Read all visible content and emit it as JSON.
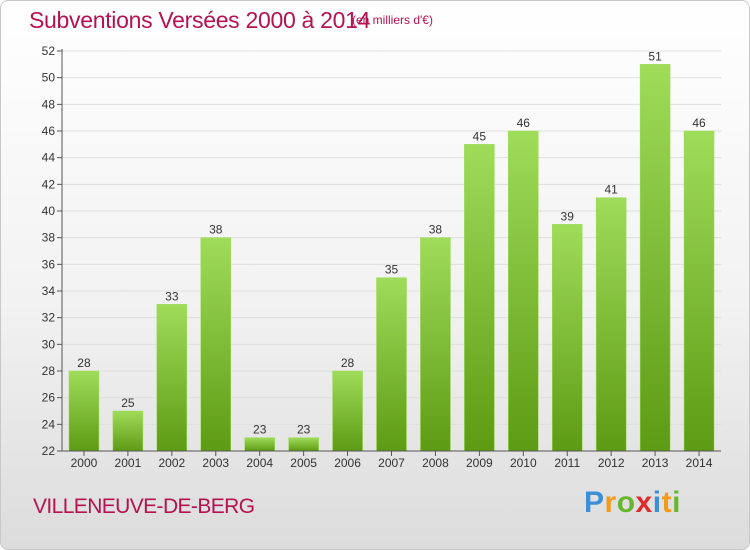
{
  "header": {
    "title": "Subventions Versées 2000 à 2014",
    "unit": "(en milliers d'€)"
  },
  "footer": {
    "commune": "VILLENEUVE-DE-BERG",
    "logo_letters": [
      "P",
      "r",
      "o",
      "x",
      "i",
      "t",
      "i"
    ],
    "logo_colors": [
      "#3b8fd9",
      "#f29a1c",
      "#68b52e",
      "#e02b2b",
      "#3b8fd9",
      "#f29a1c",
      "#68b52e"
    ]
  },
  "colors": {
    "bar_light": "#9fdc5a",
    "bar_dark": "#5e9b14",
    "grid": "#dedede",
    "axis": "#555555",
    "text": "#333333",
    "accent": "#b5124f"
  },
  "chart_data": {
    "type": "bar",
    "title": "Subventions Versées 2000 à 2014",
    "subtitle": "(en milliers d'€)",
    "xlabel": "",
    "ylabel": "",
    "categories": [
      "2000",
      "2001",
      "2002",
      "2003",
      "2004",
      "2005",
      "2006",
      "2007",
      "2008",
      "2009",
      "2010",
      "2011",
      "2012",
      "2013",
      "2014"
    ],
    "values": [
      28,
      25,
      33,
      38,
      23,
      23,
      28,
      35,
      38,
      45,
      46,
      39,
      41,
      51,
      46
    ],
    "ylim": [
      22,
      52
    ],
    "yticks": [
      22,
      24,
      26,
      28,
      30,
      32,
      34,
      36,
      38,
      40,
      42,
      44,
      46,
      48,
      50,
      52
    ],
    "grid": true,
    "data_labels": true
  }
}
